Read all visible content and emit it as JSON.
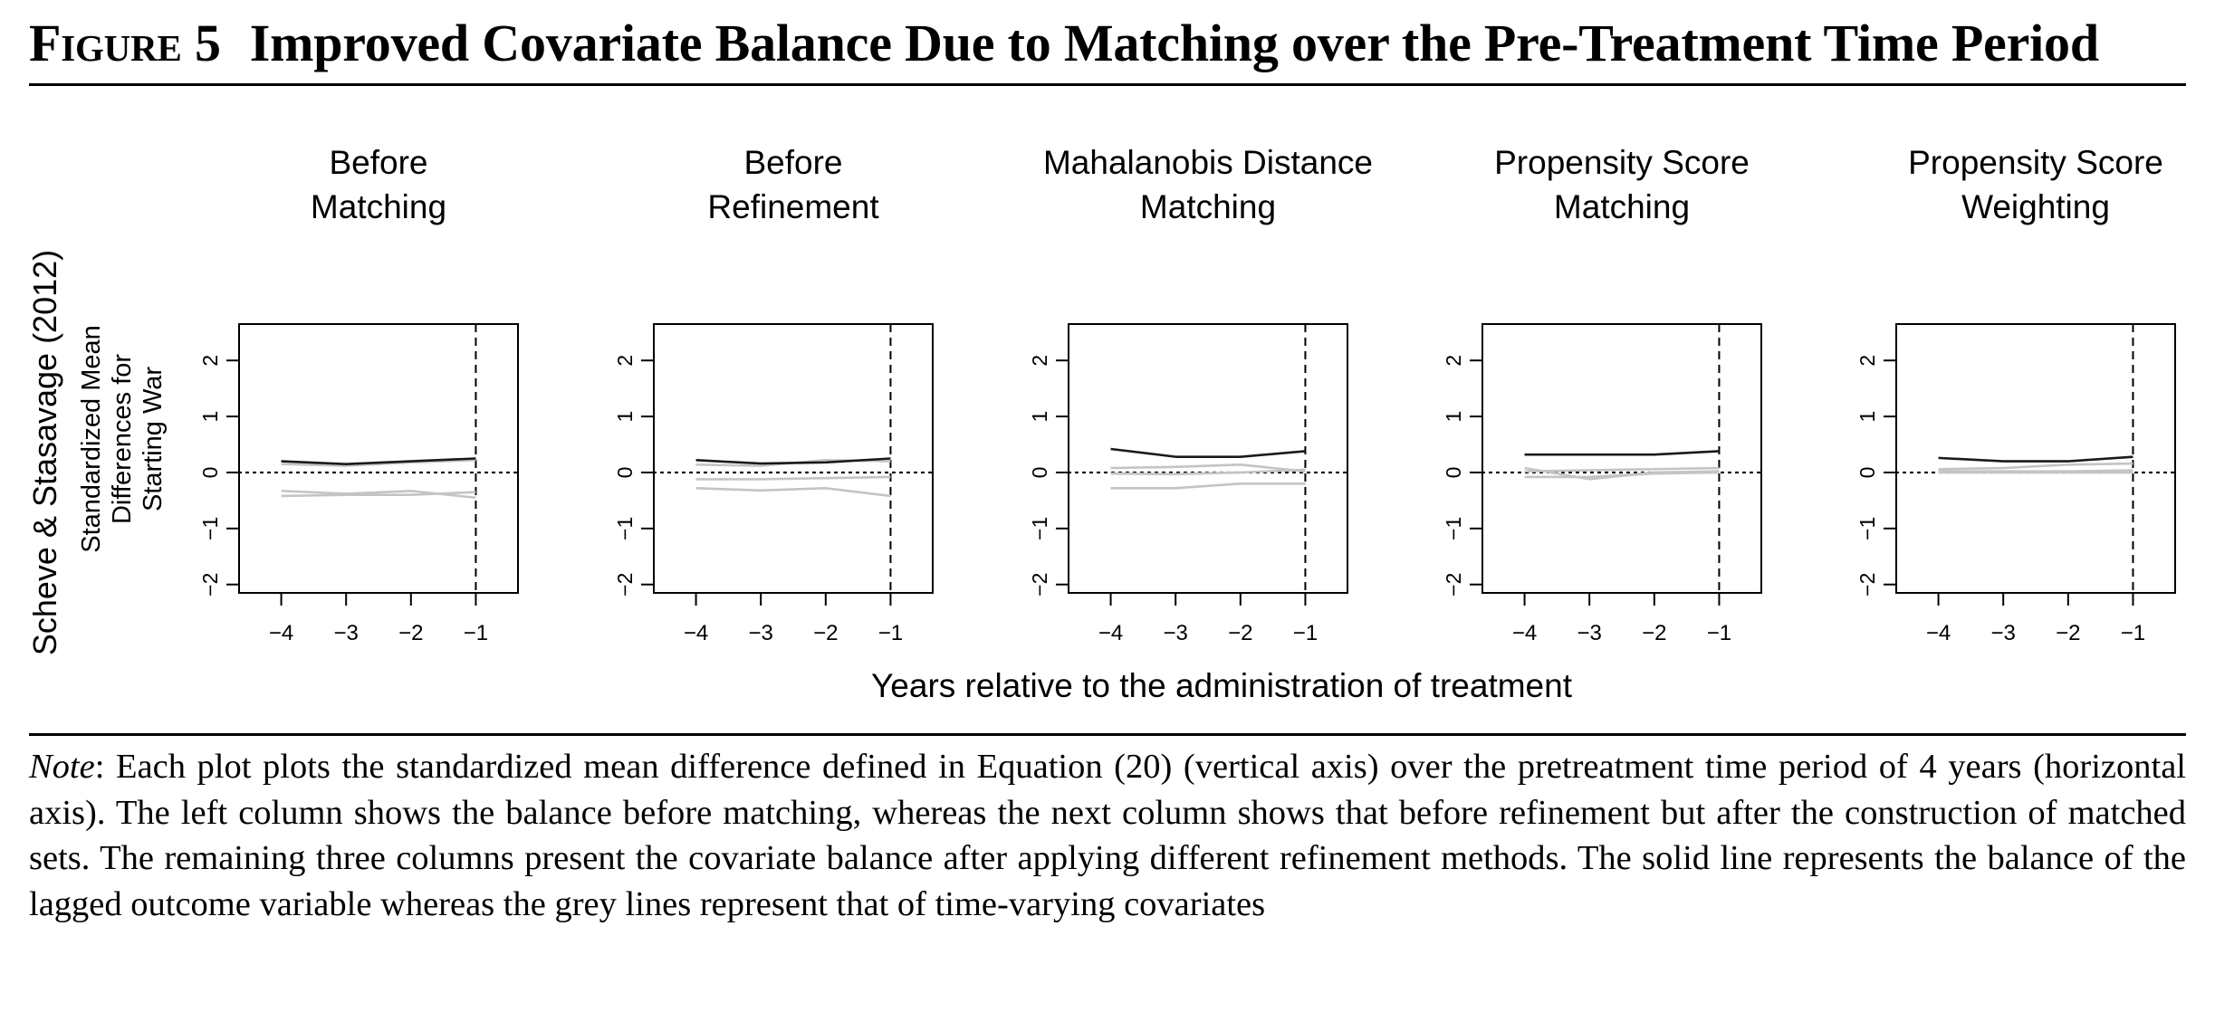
{
  "figure": {
    "label": "Figure 5",
    "title": "Improved Covariate Balance Due to Matching over the Pre-Treatment Time Period"
  },
  "note": {
    "label": "Note",
    "text": ": Each plot plots the standardized mean difference defined in Equation (20) (vertical axis) over the pretreatment time period of 4 years (horizontal axis). The left column shows the balance before matching, whereas the next column shows that before refinement but after the construction of matched sets. The remaining three columns present the covariate balance after applying different refinement methods. The solid line represents the balance of the lagged outcome variable whereas the grey lines represent that of time-varying covariates"
  },
  "colors": {
    "outcome_line": "#1a1a1a",
    "covariate_lines": "#c4c4c4"
  },
  "chart_data": {
    "type": "line",
    "row_label": "Scheve & Stasavage (2012)",
    "ylabel_lines": [
      "Standardized Mean",
      "Differences for",
      "Starting War"
    ],
    "xlabel": "Years relative to the administration of treatment",
    "x": [
      -4,
      -3,
      -2,
      -1
    ],
    "xticks": [
      -4,
      -3,
      -2,
      -1
    ],
    "xtick_labels": [
      "−4",
      "−3",
      "−2",
      "−1"
    ],
    "yticks": [
      -2,
      -1,
      0,
      1,
      2
    ],
    "ytick_labels": [
      "−2",
      "−1",
      "0",
      "1",
      "2"
    ],
    "xlim": [
      -4.65,
      -0.35
    ],
    "ylim": [
      -2.15,
      2.65
    ],
    "reference_hline": 0,
    "reference_vline": -1,
    "panels": [
      {
        "title_lines": [
          "Before",
          "Matching"
        ],
        "lagged_outcome": [
          0.2,
          0.15,
          0.2,
          0.25
        ],
        "covariates": [
          [
            -0.33,
            -0.38,
            -0.33,
            -0.45
          ],
          [
            -0.42,
            -0.4,
            -0.4,
            -0.35
          ],
          [
            0.15,
            0.12,
            0.18,
            0.22
          ]
        ]
      },
      {
        "title_lines": [
          "Before",
          "Refinement"
        ],
        "lagged_outcome": [
          0.22,
          0.16,
          0.18,
          0.25
        ],
        "covariates": [
          [
            -0.28,
            -0.32,
            -0.28,
            -0.42
          ],
          [
            -0.12,
            -0.12,
            -0.1,
            -0.08
          ],
          [
            0.14,
            0.12,
            0.22,
            0.2
          ]
        ]
      },
      {
        "title_lines": [
          "Mahalanobis Distance",
          "Matching"
        ],
        "lagged_outcome": [
          0.42,
          0.28,
          0.28,
          0.38
        ],
        "covariates": [
          [
            -0.28,
            -0.28,
            -0.2,
            -0.2
          ],
          [
            0.08,
            0.1,
            0.14,
            0.02
          ],
          [
            -0.02,
            -0.03,
            0.0,
            0.05
          ]
        ]
      },
      {
        "title_lines": [
          "Propensity Score",
          "Matching"
        ],
        "lagged_outcome": [
          0.32,
          0.32,
          0.32,
          0.38
        ],
        "covariates": [
          [
            0.08,
            -0.12,
            0.0,
            0.02
          ],
          [
            -0.08,
            -0.08,
            -0.02,
            0.0
          ],
          [
            0.02,
            0.04,
            0.06,
            0.08
          ]
        ]
      },
      {
        "title_lines": [
          "Propensity Score",
          "Weighting"
        ],
        "lagged_outcome": [
          0.26,
          0.2,
          0.2,
          0.28
        ],
        "covariates": [
          [
            0.06,
            0.08,
            0.14,
            0.16
          ],
          [
            0.02,
            0.02,
            0.02,
            0.04
          ],
          [
            0.0,
            0.0,
            0.0,
            0.0
          ]
        ]
      }
    ]
  }
}
